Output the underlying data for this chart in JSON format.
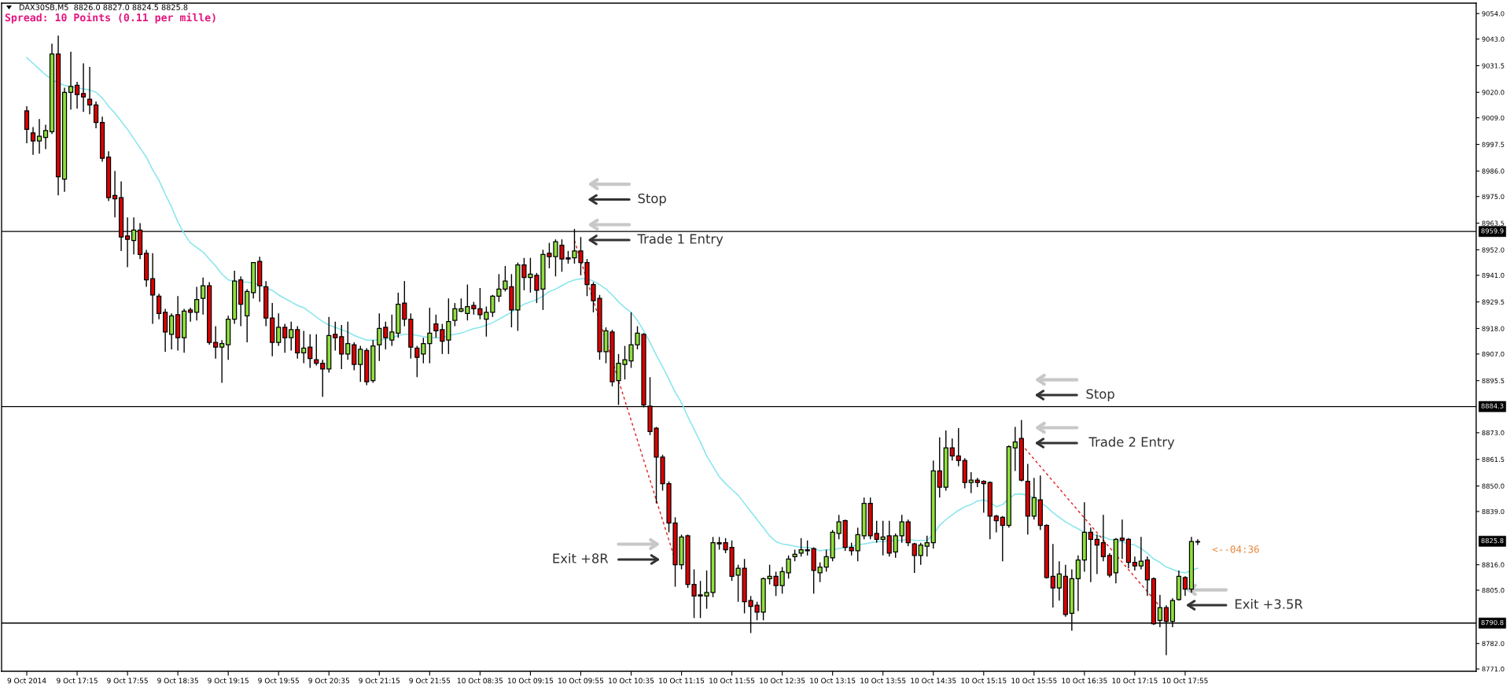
{
  "chart_data": {
    "type": "candlestick",
    "title": "DAX30SB,M5  8826.0 8827.0 8824.5 8825.8",
    "subtitle": "Spread: 10 Points (0.11 per mille)",
    "categories": [
      "9 Oct 2014",
      null,
      null,
      null,
      null,
      null,
      null,
      null,
      "9 Oct 17:15",
      null,
      null,
      null,
      null,
      null,
      null,
      null,
      "9 Oct 17:55",
      null,
      null,
      null,
      null,
      null,
      null,
      null,
      "9 Oct 18:35",
      null,
      null,
      null,
      null,
      null,
      null,
      null,
      "9 Oct 19:15",
      null,
      null,
      null,
      null,
      null,
      null,
      null,
      "9 Oct 19:55",
      null,
      null,
      null,
      null,
      null,
      null,
      null,
      "9 Oct 20:35",
      null,
      null,
      null,
      null,
      null,
      null,
      null,
      "9 Oct 21:15",
      null,
      null,
      null,
      null,
      null,
      null,
      null,
      "9 Oct 21:55",
      null,
      null,
      null,
      null,
      null,
      null,
      null,
      "10 Oct 08:35",
      null,
      null,
      null,
      null,
      null,
      null,
      null,
      "10 Oct 09:15",
      null,
      null,
      null,
      null,
      null,
      null,
      null,
      "10 Oct 09:55",
      null,
      null,
      null,
      null,
      null,
      null,
      null,
      "10 Oct 10:35",
      null,
      null,
      null,
      null,
      null,
      null,
      null,
      "10 Oct 11:15",
      null,
      null,
      null,
      null,
      null,
      null,
      null,
      "10 Oct 11:55",
      null,
      null,
      null,
      null,
      null,
      null,
      null,
      "10 Oct 12:35",
      null,
      null,
      null,
      null,
      null,
      null,
      null,
      "10 Oct 13:15",
      null,
      null,
      null,
      null,
      null,
      null,
      null,
      "10 Oct 13:55",
      null,
      null,
      null,
      null,
      null,
      null,
      null,
      "10 Oct 14:35",
      null,
      null,
      null,
      null,
      null,
      null,
      null,
      "10 Oct 15:15",
      null,
      null,
      null,
      null,
      null,
      null,
      null,
      "10 Oct 15:55",
      null,
      null,
      null,
      null,
      null,
      null,
      null,
      "10 Oct 16:35",
      null,
      null,
      null,
      null,
      null,
      null,
      null,
      "10 Oct 17:15",
      null,
      null,
      null,
      null,
      null,
      null,
      null,
      "10 Oct 17:55",
      null,
      null
    ],
    "ohlc": [
      [
        9012,
        9014,
        8998,
        9004
      ],
      [
        9002.5,
        9005,
        8993,
        8999
      ],
      [
        8999,
        9008.5,
        8993.5,
        9001
      ],
      [
        9000.5,
        9006,
        8995.5,
        9003.5
      ],
      [
        9003,
        9041,
        9002,
        9036.5
      ],
      [
        9036.5,
        9044.5,
        8975.5,
        8983.5
      ],
      [
        8982.5,
        9022,
        8977,
        9020
      ],
      [
        9020,
        9037.5,
        9012.5,
        9022.5
      ],
      [
        9023,
        9024.5,
        9013,
        9019
      ],
      [
        9019.5,
        9032.5,
        9011.5,
        9018
      ],
      [
        9017,
        9031,
        9010.5,
        9014.5
      ],
      [
        9014.5,
        9016,
        9004.5,
        9007
      ],
      [
        9007,
        9009.5,
        8990,
        8991.5
      ],
      [
        8992,
        8994.5,
        8973,
        8974.5
      ],
      [
        8975.5,
        8986,
        8966,
        8974
      ],
      [
        8974.5,
        8981.5,
        8951.5,
        8957.5
      ],
      [
        8958,
        8966,
        8944.5,
        8956.5
      ],
      [
        8956,
        8966,
        8950,
        8960.5
      ],
      [
        8960.5,
        8963.5,
        8948,
        8950
      ],
      [
        8950.5,
        8952,
        8936,
        8939
      ],
      [
        8939.5,
        8950.5,
        8920,
        8932.5
      ],
      [
        8932,
        8933,
        8922,
        8924.5
      ],
      [
        8925,
        8926.5,
        8908,
        8916.5
      ],
      [
        8915.5,
        8924.5,
        8909,
        8923.5
      ],
      [
        8924,
        8932,
        8908.5,
        8914
      ],
      [
        8914,
        8926.5,
        8907.5,
        8925.5
      ],
      [
        8926,
        8927,
        8921,
        8925
      ],
      [
        8925,
        8936,
        8921.5,
        8930.5
      ],
      [
        8931,
        8940,
        8924,
        8936.5
      ],
      [
        8936.5,
        8938,
        8911,
        8912
      ],
      [
        8912,
        8919,
        8905,
        8910
      ],
      [
        8910,
        8913,
        8894.5,
        8911.5
      ],
      [
        8911,
        8923.5,
        8904.5,
        8922
      ],
      [
        8922,
        8943,
        8920,
        8938.5
      ],
      [
        8939,
        8940.5,
        8919,
        8928.5
      ],
      [
        8923.5,
        8935,
        8912,
        8934
      ],
      [
        8933.5,
        8946.5,
        8931,
        8946.5
      ],
      [
        8947,
        8949,
        8929.5,
        8936.5
      ],
      [
        8936,
        8938.5,
        8919,
        8922.5
      ],
      [
        8922.5,
        8929,
        8906,
        8912
      ],
      [
        8912,
        8924.5,
        8910.5,
        8918.5
      ],
      [
        8918.5,
        8920,
        8907.5,
        8914
      ],
      [
        8914,
        8921,
        8908.5,
        8917.5
      ],
      [
        8917.5,
        8919,
        8905,
        8907.5
      ],
      [
        8907.5,
        8917,
        8903,
        8909.5
      ],
      [
        8910,
        8915.5,
        8901,
        8905
      ],
      [
        8904.5,
        8915.5,
        8902,
        8903
      ],
      [
        8903,
        8904.5,
        8888.5,
        8900.5
      ],
      [
        8900.5,
        8923,
        8899,
        8915
      ],
      [
        8915.5,
        8921,
        8908.5,
        8914
      ],
      [
        8914.5,
        8919.5,
        8900.5,
        8907
      ],
      [
        8907,
        8921,
        8904.5,
        8911.5
      ],
      [
        8911,
        8912,
        8900,
        8902.5
      ],
      [
        8902.5,
        8910.5,
        8895,
        8909
      ],
      [
        8908.5,
        8909.5,
        8893.5,
        8895
      ],
      [
        8895.5,
        8913,
        8894.5,
        8910.5
      ],
      [
        8911,
        8924.5,
        8904,
        8918
      ],
      [
        8918.5,
        8921,
        8909,
        8914
      ],
      [
        8913,
        8924,
        8910.5,
        8916.5
      ],
      [
        8916,
        8933.5,
        8914,
        8928.5
      ],
      [
        8929,
        8938.5,
        8919,
        8922
      ],
      [
        8922,
        8924.5,
        8905,
        8910
      ],
      [
        8909.5,
        8910.5,
        8897,
        8905.5
      ],
      [
        8907,
        8914,
        8903,
        8911.5
      ],
      [
        8911.5,
        8927,
        8903,
        8916
      ],
      [
        8920,
        8924,
        8914,
        8917
      ],
      [
        8917.5,
        8920,
        8907,
        8912.5
      ],
      [
        8913,
        8931,
        8907,
        8921
      ],
      [
        8921.5,
        8929,
        8919,
        8926.5
      ],
      [
        8925.5,
        8931,
        8925,
        8926.5
      ],
      [
        8924.5,
        8937,
        8921.5,
        8927.5
      ],
      [
        8928,
        8929.5,
        8924,
        8926.5
      ],
      [
        8926.5,
        8935.5,
        8922,
        8924
      ],
      [
        8922,
        8927.5,
        8914.5,
        8925
      ],
      [
        8925,
        8932.5,
        8923,
        8932
      ],
      [
        8932,
        8941.5,
        8929.5,
        8935
      ],
      [
        8935,
        8945,
        8934,
        8938.5
      ],
      [
        8936,
        8941.5,
        8918.5,
        8926
      ],
      [
        8926,
        8946.5,
        8917,
        8945.5
      ],
      [
        8945.5,
        8948.5,
        8934.5,
        8940
      ],
      [
        8940,
        8948.5,
        8933.5,
        8941.5
      ],
      [
        8941,
        8942,
        8929,
        8934.5
      ],
      [
        8935,
        8952,
        8926,
        8950
      ],
      [
        8950.5,
        8955,
        8944,
        8949
      ],
      [
        8949,
        8956.5,
        8940.5,
        8955.5
      ],
      [
        8954,
        8956.5,
        8942.5,
        8948
      ],
      [
        8948.5,
        8951.5,
        8946,
        8948
      ],
      [
        8948.5,
        8961,
        8946,
        8951.5
      ],
      [
        8951.5,
        8957.5,
        8941,
        8946.5
      ],
      [
        8946.5,
        8948,
        8932,
        8937
      ],
      [
        8937,
        8938,
        8925,
        8930
      ],
      [
        8931,
        8932.5,
        8904.5,
        8908
      ],
      [
        8908,
        8918.5,
        8903,
        8917
      ],
      [
        8916.5,
        8917.5,
        8893,
        8895
      ],
      [
        8895.5,
        8907,
        8885,
        8903
      ],
      [
        8902.5,
        8910.5,
        8896,
        8904.5
      ],
      [
        8904,
        8925,
        8901,
        8911
      ],
      [
        8911,
        8919,
        8909,
        8916
      ],
      [
        8915.5,
        8916,
        8884,
        8885
      ],
      [
        8884.5,
        8897,
        8872,
        8873.5
      ],
      [
        8875,
        8875.5,
        8842.5,
        8862.5
      ],
      [
        8862.5,
        8863.5,
        8848,
        8851
      ],
      [
        8851,
        8852,
        8830,
        8834
      ],
      [
        8834,
        8836.5,
        8806.5,
        8816
      ],
      [
        8816,
        8829,
        8814,
        8828
      ],
      [
        8828.5,
        8829,
        8806,
        8807.5
      ],
      [
        8807.5,
        8814,
        8793,
        8802.5
      ],
      [
        8803,
        8809,
        8793,
        8802.5
      ],
      [
        8802.5,
        8813.5,
        8797,
        8804
      ],
      [
        8804,
        8828,
        8802,
        8825.5
      ],
      [
        8825.5,
        8828,
        8822.5,
        8825
      ],
      [
        8825.5,
        8827.5,
        8821,
        8822.5
      ],
      [
        8823.5,
        8826.5,
        8809,
        8811
      ],
      [
        8811.5,
        8816,
        8800,
        8814.5
      ],
      [
        8814.5,
        8818.5,
        8795,
        8800
      ],
      [
        8800.5,
        8802.5,
        8786.5,
        8798
      ],
      [
        8798.5,
        8800,
        8792,
        8795.5
      ],
      [
        8795.5,
        8810.5,
        8792,
        8810
      ],
      [
        8810,
        8816,
        8807.5,
        8811
      ],
      [
        8811,
        8813,
        8802.5,
        8807
      ],
      [
        8807,
        8815,
        8803.5,
        8813
      ],
      [
        8812.5,
        8820,
        8810,
        8818.5
      ],
      [
        8819.5,
        8822.5,
        8817.5,
        8820.5
      ],
      [
        8821,
        8827.5,
        8819.5,
        8822.5
      ],
      [
        8822.5,
        8826.5,
        8820,
        8822
      ],
      [
        8823,
        8823.5,
        8803.5,
        8813.5
      ],
      [
        8812.5,
        8817,
        8808.5,
        8815
      ],
      [
        8815,
        8822.5,
        8813,
        8819.5
      ],
      [
        8819,
        8831,
        8817.5,
        8830
      ],
      [
        8829.5,
        8837.5,
        8827,
        8834.5
      ],
      [
        8835,
        8835.5,
        8822,
        8823.5
      ],
      [
        8823.5,
        8825.5,
        8820,
        8822
      ],
      [
        8822,
        8832,
        8817.5,
        8829
      ],
      [
        8828.5,
        8845,
        8827,
        8842.5
      ],
      [
        8842.5,
        8845,
        8827,
        8828.5
      ],
      [
        8829.5,
        8835,
        8825.5,
        8827
      ],
      [
        8827,
        8835,
        8820,
        8828
      ],
      [
        8828.5,
        8835,
        8819.5,
        8821
      ],
      [
        8821.5,
        8829.5,
        8819,
        8828.5
      ],
      [
        8828.5,
        8837.5,
        8825.5,
        8834.5
      ],
      [
        8834.5,
        8835.5,
        8824,
        8825.5
      ],
      [
        8825,
        8825.5,
        8812.5,
        8820
      ],
      [
        8820,
        8825.5,
        8816,
        8824.5
      ],
      [
        8824,
        8828.5,
        8819.5,
        8825.5
      ],
      [
        8825.5,
        8861,
        8823,
        8856.5
      ],
      [
        8856.5,
        8871,
        8845,
        8849.5
      ],
      [
        8849.5,
        8874,
        8848,
        8866.5
      ],
      [
        8866.5,
        8870.5,
        8861,
        8863
      ],
      [
        8863,
        8875,
        8858.5,
        8861
      ],
      [
        8861,
        8862,
        8849,
        8851.5
      ],
      [
        8851.5,
        8856,
        8847,
        8852.5
      ],
      [
        8852.5,
        8853.5,
        8849.5,
        8851.5
      ],
      [
        8852,
        8852.5,
        8838.5,
        8851
      ],
      [
        8851.5,
        8852,
        8827,
        8837
      ],
      [
        8837,
        8837.5,
        8830,
        8835
      ],
      [
        8836.5,
        8837,
        8817.5,
        8833
      ],
      [
        8833,
        8867.5,
        8832,
        8867
      ],
      [
        8866.5,
        8875.5,
        8856.5,
        8869
      ],
      [
        8870.5,
        8878.5,
        8852,
        8852.5
      ],
      [
        8852,
        8859.5,
        8829,
        8837
      ],
      [
        8837,
        8853.5,
        8835.5,
        8845
      ],
      [
        8844,
        8854.5,
        8831,
        8833
      ],
      [
        8833,
        8833.5,
        8810,
        8810.5
      ],
      [
        8811,
        8825,
        8797.5,
        8806
      ],
      [
        8806,
        8817.5,
        8800.5,
        8812
      ],
      [
        8811,
        8816,
        8793.5,
        8794.5
      ],
      [
        8795,
        8814,
        8787.5,
        8810
      ],
      [
        8810,
        8820,
        8796,
        8818
      ],
      [
        8818,
        8843,
        8813,
        8830
      ],
      [
        8830,
        8832,
        8808.5,
        8827
      ],
      [
        8827,
        8829,
        8812,
        8824.5
      ],
      [
        8825.5,
        8837.5,
        8817.5,
        8819.5
      ],
      [
        8820,
        8821,
        8810.5,
        8811.5
      ],
      [
        8812.5,
        8827.5,
        8808,
        8827
      ],
      [
        8827.5,
        8835.5,
        8818.5,
        8826.5
      ],
      [
        8827,
        8827.5,
        8814.5,
        8817
      ],
      [
        8817,
        8819.5,
        8813.5,
        8815.5
      ],
      [
        8815.5,
        8828,
        8814,
        8817.5
      ],
      [
        8818,
        8819.5,
        8802.5,
        8809.5
      ],
      [
        8810,
        8810.5,
        8790,
        8790.5
      ],
      [
        8792,
        8803,
        8789,
        8797.5
      ],
      [
        8797.5,
        8798.5,
        8777,
        8791.5
      ],
      [
        8791.5,
        8801.5,
        8789,
        8800.5
      ],
      [
        8801,
        8813.5,
        8800.5,
        8811
      ],
      [
        8810.5,
        8811,
        8802.5,
        8805.5
      ],
      [
        8805.5,
        8828,
        8804,
        8826
      ],
      [
        8826.0,
        8827.0,
        8824.5,
        8825.8
      ]
    ],
    "colors": [
      "#dd0000",
      "#dd0000",
      "#8fe03c",
      "#8fe03c",
      "#8fe03c",
      "#dd0000",
      "#8fe03c",
      "#8fe03c",
      "#dd0000",
      "#dd0000",
      "#dd0000",
      "#dd0000",
      "#dd0000",
      "#dd0000",
      "#dd0000",
      "#dd0000",
      "#dd0000",
      "#8fe03c",
      "#dd0000",
      "#dd0000",
      "#dd0000",
      "#dd0000",
      "#dd0000",
      "#8fe03c",
      "#dd0000",
      "#8fe03c",
      "#dd0000",
      "#8fe03c",
      "#8fe03c",
      "#dd0000",
      "#dd0000",
      "#8fe03c",
      "#8fe03c",
      "#8fe03c",
      "#dd0000",
      "#8fe03c",
      "#8fe03c",
      "#dd0000",
      "#dd0000",
      "#dd0000",
      "#8fe03c",
      "#dd0000",
      "#8fe03c",
      "#dd0000",
      "#8fe03c",
      "#dd0000",
      "#dd0000",
      "#dd0000",
      "#8fe03c",
      "#dd0000",
      "#dd0000",
      "#8fe03c",
      "#dd0000",
      "#8fe03c",
      "#dd0000",
      "#8fe03c",
      "#8fe03c",
      "#dd0000",
      "#8fe03c",
      "#8fe03c",
      "#dd0000",
      "#dd0000",
      "#dd0000",
      "#8fe03c",
      "#8fe03c",
      "#dd0000",
      "#dd0000",
      "#8fe03c",
      "#8fe03c",
      "#8fe03c",
      "#8fe03c",
      "#dd0000",
      "#dd0000",
      "#8fe03c",
      "#8fe03c",
      "#8fe03c",
      "#8fe03c",
      "#dd0000",
      "#8fe03c",
      "#dd0000",
      "#8fe03c",
      "#dd0000",
      "#8fe03c",
      "#dd0000",
      "#8fe03c",
      "#dd0000",
      "#dd0000",
      "#8fe03c",
      "#dd0000",
      "#dd0000",
      "#dd0000",
      "#dd0000",
      "#8fe03c",
      "#dd0000",
      "#8fe03c",
      "#8fe03c",
      "#8fe03c",
      "#8fe03c",
      "#dd0000",
      "#dd0000",
      "#dd0000",
      "#dd0000",
      "#dd0000",
      "#dd0000",
      "#8fe03c",
      "#dd0000",
      "#dd0000",
      "#dd0000",
      "#8fe03c",
      "#8fe03c",
      "#dd0000",
      "#dd0000",
      "#dd0000",
      "#8fe03c",
      "#dd0000",
      "#dd0000",
      "#dd0000",
      "#8fe03c",
      "#8fe03c",
      "#dd0000",
      "#8fe03c",
      "#8fe03c",
      "#8fe03c",
      "#8fe03c",
      "#dd0000",
      "#dd0000",
      "#8fe03c",
      "#8fe03c",
      "#8fe03c",
      "#8fe03c",
      "#dd0000",
      "#dd0000",
      "#8fe03c",
      "#8fe03c",
      "#dd0000",
      "#dd0000",
      "#8fe03c",
      "#dd0000",
      "#8fe03c",
      "#8fe03c",
      "#dd0000",
      "#dd0000",
      "#8fe03c",
      "#8fe03c",
      "#8fe03c",
      "#dd0000",
      "#8fe03c",
      "#dd0000",
      "#dd0000",
      "#dd0000",
      "#8fe03c",
      "#dd0000",
      "#dd0000",
      "#dd0000",
      "#dd0000",
      "#dd0000",
      "#8fe03c",
      "#8fe03c",
      "#dd0000",
      "#dd0000",
      "#8fe03c",
      "#dd0000",
      "#dd0000",
      "#dd0000",
      "#8fe03c",
      "#dd0000",
      "#8fe03c",
      "#8fe03c",
      "#8fe03c",
      "#dd0000",
      "#dd0000",
      "#dd0000",
      "#dd0000",
      "#8fe03c",
      "#dd0000",
      "#dd0000",
      "#dd0000",
      "#8fe03c",
      "#dd0000",
      "#dd0000",
      "#8fe03c",
      "#dd0000",
      "#8fe03c",
      "#8fe03c",
      "#dd0000",
      "#8fe03c",
      "#dd0000"
    ],
    "series": [
      {
        "type": "line",
        "color": "#86e5ec",
        "values": [
          9035,
          9032.5,
          9030,
          9027.5,
          9025.5,
          9024,
          9023,
          9022.5,
          9022,
          9021.5,
          9021,
          9020,
          9017.5,
          9014,
          9011,
          9007.5,
          9004,
          9000,
          8996,
          8992,
          8986.5,
          8982,
          8976,
          8970.5,
          8964,
          8959,
          8955,
          8953,
          8951,
          8948,
          8945,
          8941.5,
          8939,
          8938.5,
          8938,
          8938,
          8937.5,
          8937,
          8935.5,
          8934.5,
          8932.5,
          8931,
          8929.5,
          8928,
          8927,
          8925,
          8923,
          8921,
          8919.5,
          8918.5,
          8917.5,
          8916.5,
          8915,
          8914,
          8913,
          8913,
          8913,
          8913.5,
          8914,
          8915,
          8915.5,
          8915.5,
          8915,
          8914.5,
          8914,
          8914,
          8914,
          8915,
          8915.5,
          8916,
          8917,
          8918,
          8918.5,
          8919.5,
          8920.5,
          8922,
          8923.5,
          8925,
          8927,
          8928.5,
          8929.5,
          8930.5,
          8932,
          8934,
          8935,
          8936.5,
          8938,
          8939,
          8939.5,
          8939.5,
          8938.5,
          8937,
          8935,
          8932.5,
          8929.5,
          8927,
          8925,
          8921.5,
          8917,
          8912,
          8906.5,
          8901.5,
          8896,
          8890.5,
          8886,
          8880,
          8874.5,
          8869,
          8863,
          8858.5,
          8854,
          8851,
          8848.5,
          8846,
          8842.5,
          8839,
          8835.5,
          8832,
          8828.5,
          8826,
          8825,
          8824.5,
          8824,
          8823.5,
          8823.5,
          8823,
          8822,
          8822.5,
          8822.5,
          8823,
          8823.5,
          8824,
          8824.5,
          8825,
          8825.5,
          8826,
          8826,
          8826.5,
          8826.5,
          8826.5,
          8827,
          8826.5,
          8826.5,
          8826.5,
          8829,
          8833,
          8835.5,
          8837.5,
          8839.5,
          8841,
          8842,
          8843.5,
          8844,
          8843,
          8841,
          8842,
          8844.5,
          8846.5,
          8846.5,
          8846,
          8845,
          8843,
          8841,
          8838.5,
          8836.5,
          8834.5,
          8833,
          8831.5,
          8830,
          8829.5,
          8828.5,
          8828,
          8827,
          8826.5,
          8826,
          8825,
          8824.5,
          8823,
          8821,
          8818.5,
          8817,
          8815,
          8814,
          8813,
          8812.5,
          8813.5,
          8814.5
        ]
      },
      {
        "type": "line",
        "color": "#e02020",
        "line_style": "dashed",
        "values": [
          null,
          null,
          null,
          null,
          null,
          null,
          null,
          null,
          null,
          null,
          null,
          null,
          null,
          null,
          null,
          null,
          null,
          null,
          null,
          null,
          null,
          null,
          null,
          null,
          null,
          null,
          null,
          null,
          null,
          null,
          null,
          null,
          null,
          null,
          null,
          null,
          null,
          null,
          null,
          null,
          null,
          null,
          null,
          null,
          null,
          null,
          null,
          null,
          null,
          null,
          null,
          null,
          null,
          null,
          null,
          null,
          null,
          null,
          null,
          null,
          null,
          null,
          null,
          null,
          null,
          null,
          null,
          null,
          null,
          null,
          null,
          null,
          null,
          null,
          null,
          null,
          null,
          null,
          null,
          null,
          null,
          null,
          null,
          null,
          null,
          null,
          null,
          8956,
          null,
          null,
          null,
          null,
          null,
          null,
          null,
          null,
          null,
          null,
          null,
          null,
          null,
          null,
          null,
          8818,
          null,
          null,
          null,
          null,
          null,
          null,
          null,
          null,
          null,
          null,
          null,
          null,
          null,
          null,
          null,
          null,
          null,
          null,
          null,
          null,
          null,
          null,
          null,
          null,
          null,
          null,
          null,
          null,
          null,
          null,
          null,
          null,
          null,
          null,
          null,
          null,
          null,
          null,
          null,
          null,
          null,
          null,
          null,
          null,
          null,
          null,
          null,
          null,
          null,
          null,
          null,
          null,
          null,
          null,
          null,
          null,
          null,
          null,
          null,
          null,
          null,
          null,
          null,
          null,
          null,
          null,
          null,
          null,
          null,
          null,
          null,
          null,
          null,
          null,
          null,
          null,
          null,
          null,
          null,
          null,
          null,
          null,
          null
        ]
      },
      {
        "type": "line",
        "color": "#e02020",
        "line_style": "dashed",
        "values": [
          null,
          null,
          null,
          null,
          null,
          null,
          null,
          null,
          null,
          null,
          null,
          null,
          null,
          null,
          null,
          null,
          null,
          null,
          null,
          null,
          null,
          null,
          null,
          null,
          null,
          null,
          null,
          null,
          null,
          null,
          null,
          null,
          null,
          null,
          null,
          null,
          null,
          null,
          null,
          null,
          null,
          null,
          null,
          null,
          null,
          null,
          null,
          null,
          null,
          null,
          null,
          null,
          null,
          null,
          null,
          null,
          null,
          null,
          null,
          null,
          null,
          null,
          null,
          null,
          null,
          null,
          null,
          null,
          null,
          null,
          null,
          null,
          null,
          null,
          null,
          null,
          null,
          null,
          null,
          null,
          null,
          null,
          null,
          null,
          null,
          null,
          null,
          null,
          null,
          null,
          null,
          null,
          null,
          null,
          null,
          null,
          null,
          null,
          null,
          null,
          null,
          null,
          null,
          null,
          null,
          null,
          null,
          null,
          null,
          null,
          null,
          null,
          null,
          null,
          null,
          null,
          null,
          null,
          null,
          null,
          null,
          null,
          null,
          null,
          null,
          null,
          null,
          null,
          null,
          null,
          null,
          null,
          null,
          null,
          null,
          null,
          null,
          null,
          null,
          null,
          null,
          null,
          null,
          null,
          null,
          null,
          null,
          null,
          null,
          null,
          null,
          null,
          null,
          null,
          null,
          null,
          null,
          null,
          8868,
          null,
          null,
          null,
          null,
          null,
          null,
          null,
          null,
          null,
          null,
          null,
          null,
          null,
          null,
          null,
          null,
          null,
          null,
          null,
          null,
          null,
          8798,
          null,
          null,
          null,
          null,
          null,
          null
        ]
      }
    ],
    "ylim": [
      8770,
      9058.5
    ],
    "yticks": [
      {
        "value": 9054.0,
        "label": "9054.0"
      },
      {
        "value": 9043.0,
        "label": "9043.0"
      },
      {
        "value": 9031.5,
        "label": "9031.5"
      },
      {
        "value": 9020.0,
        "label": "9020.0"
      },
      {
        "value": 9009.0,
        "label": "9009.0"
      },
      {
        "value": 8997.5,
        "label": "8997.5"
      },
      {
        "value": 8986.0,
        "label": "8986.0"
      },
      {
        "value": 8975.0,
        "label": "8975.0"
      },
      {
        "value": 8963.5,
        "label": "8963.5"
      },
      {
        "value": 8952.0,
        "label": "8952.0"
      },
      {
        "value": 8941.0,
        "label": "8941.0"
      },
      {
        "value": 8929.5,
        "label": "8929.5"
      },
      {
        "value": 8918.0,
        "label": "8918.0"
      },
      {
        "value": 8907.0,
        "label": "8907.0"
      },
      {
        "value": 8895.5,
        "label": "8895.5"
      },
      {
        "value": 8873.0,
        "label": "8873.0"
      },
      {
        "value": 8861.5,
        "label": "8861.5"
      },
      {
        "value": 8850.0,
        "label": "8850.0"
      },
      {
        "value": 8839.0,
        "label": "8839.0"
      },
      {
        "value": 8816.0,
        "label": "8816.0"
      },
      {
        "value": 8805.0,
        "label": "8805.0"
      },
      {
        "value": 8782.0,
        "label": "8782.0"
      },
      {
        "value": 8771.0,
        "label": "8771.0"
      }
    ],
    "ref_lines": [
      {
        "axis": "y",
        "value": 8959.9,
        "label": "8959.9",
        "color": "#000000"
      },
      {
        "axis": "y",
        "value": 8884.3,
        "label": "8884.3",
        "color": "#000000"
      },
      {
        "axis": "y",
        "value": 8790.8,
        "label": "8790.8",
        "color": "#000000"
      }
    ],
    "annotations": [
      "Stop",
      "Trade 1 Entry",
      "Stop",
      "Trade 2 Entry",
      "Exit +8R",
      "Exit +3.5R",
      "<--04:36",
      "8825.8"
    ]
  }
}
